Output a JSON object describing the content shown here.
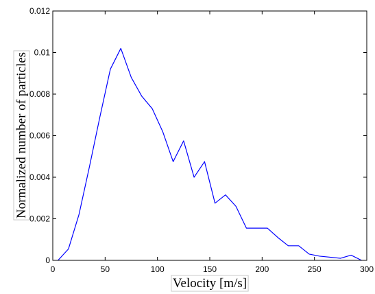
{
  "chart_data": {
    "type": "line",
    "title": "",
    "xlabel": "Velocity [m/s]",
    "ylabel": "Normalized number of particles",
    "xlim": [
      0,
      300
    ],
    "ylim": [
      0,
      0.012
    ],
    "x_ticks": [
      0,
      50,
      100,
      150,
      200,
      250,
      300
    ],
    "y_ticks": [
      0,
      0.002,
      0.004,
      0.006,
      0.008,
      0.01,
      0.012
    ],
    "x_tick_labels": [
      "0",
      "50",
      "100",
      "150",
      "200",
      "250",
      "300"
    ],
    "y_tick_labels": [
      "0",
      "0.002",
      "0.004",
      "0.006",
      "0.008",
      "0.01",
      "0.012"
    ],
    "grid": false,
    "legend": "none",
    "series": [
      {
        "color": "#0000ff",
        "x": [
          5,
          15,
          25,
          35,
          45,
          55,
          65,
          75,
          85,
          95,
          105,
          115,
          125,
          135,
          145,
          155,
          165,
          175,
          185,
          195,
          205,
          215,
          225,
          235,
          245,
          255,
          265,
          275,
          285,
          295
        ],
        "y": [
          0,
          0.00055,
          0.0022,
          0.0045,
          0.0069,
          0.0092,
          0.0102,
          0.0088,
          0.0079,
          0.0073,
          0.0062,
          0.00475,
          0.00575,
          0.004,
          0.00475,
          0.00275,
          0.00315,
          0.0026,
          0.00155,
          0.00155,
          0.00155,
          0.0011,
          0.0007,
          0.0007,
          0.0003,
          0.0002,
          0.00015,
          0.0001,
          0.00025,
          0
        ]
      }
    ]
  }
}
